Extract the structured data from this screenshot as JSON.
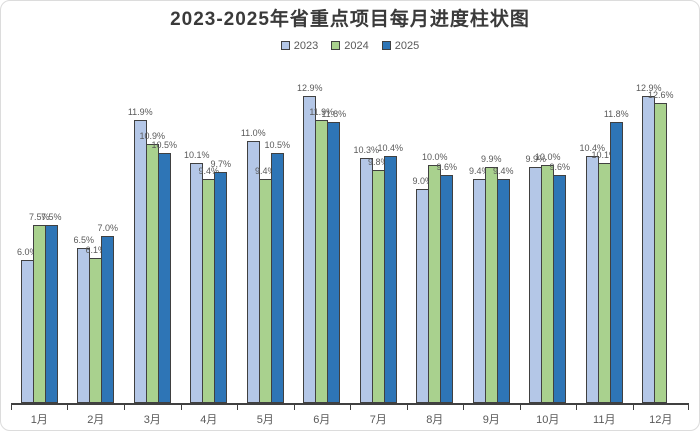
{
  "chart_data": {
    "type": "bar",
    "title": "2023-2025年省重点项目每月进度柱状图",
    "categories": [
      "1月",
      "2月",
      "3月",
      "4月",
      "5月",
      "6月",
      "7月",
      "8月",
      "9月",
      "10月",
      "11月",
      "12月"
    ],
    "series": [
      {
        "name": "2023",
        "color": "#b4c7e7",
        "values": [
          6.0,
          6.5,
          11.9,
          10.1,
          11.0,
          12.9,
          10.3,
          9.0,
          9.4,
          9.9,
          10.4,
          12.9
        ]
      },
      {
        "name": "2024",
        "color": "#a9d18e",
        "values": [
          7.5,
          6.1,
          10.9,
          9.4,
          9.4,
          11.9,
          9.8,
          10.0,
          9.9,
          10.0,
          10.1,
          12.6
        ]
      },
      {
        "name": "2025",
        "color": "#2e75b6",
        "values": [
          7.5,
          7.0,
          10.5,
          9.7,
          10.5,
          11.8,
          10.4,
          9.6,
          9.4,
          9.6,
          11.8,
          null
        ]
      }
    ],
    "value_suffix": "%",
    "label_decimals": 1,
    "ylim": [
      0,
      14.75
    ],
    "grid": false,
    "legend_position": "top",
    "data_label_color": "#595959",
    "axis_color": "#404040",
    "bar_outline_color": "#404040",
    "title_color": "#3a3a3a"
  }
}
